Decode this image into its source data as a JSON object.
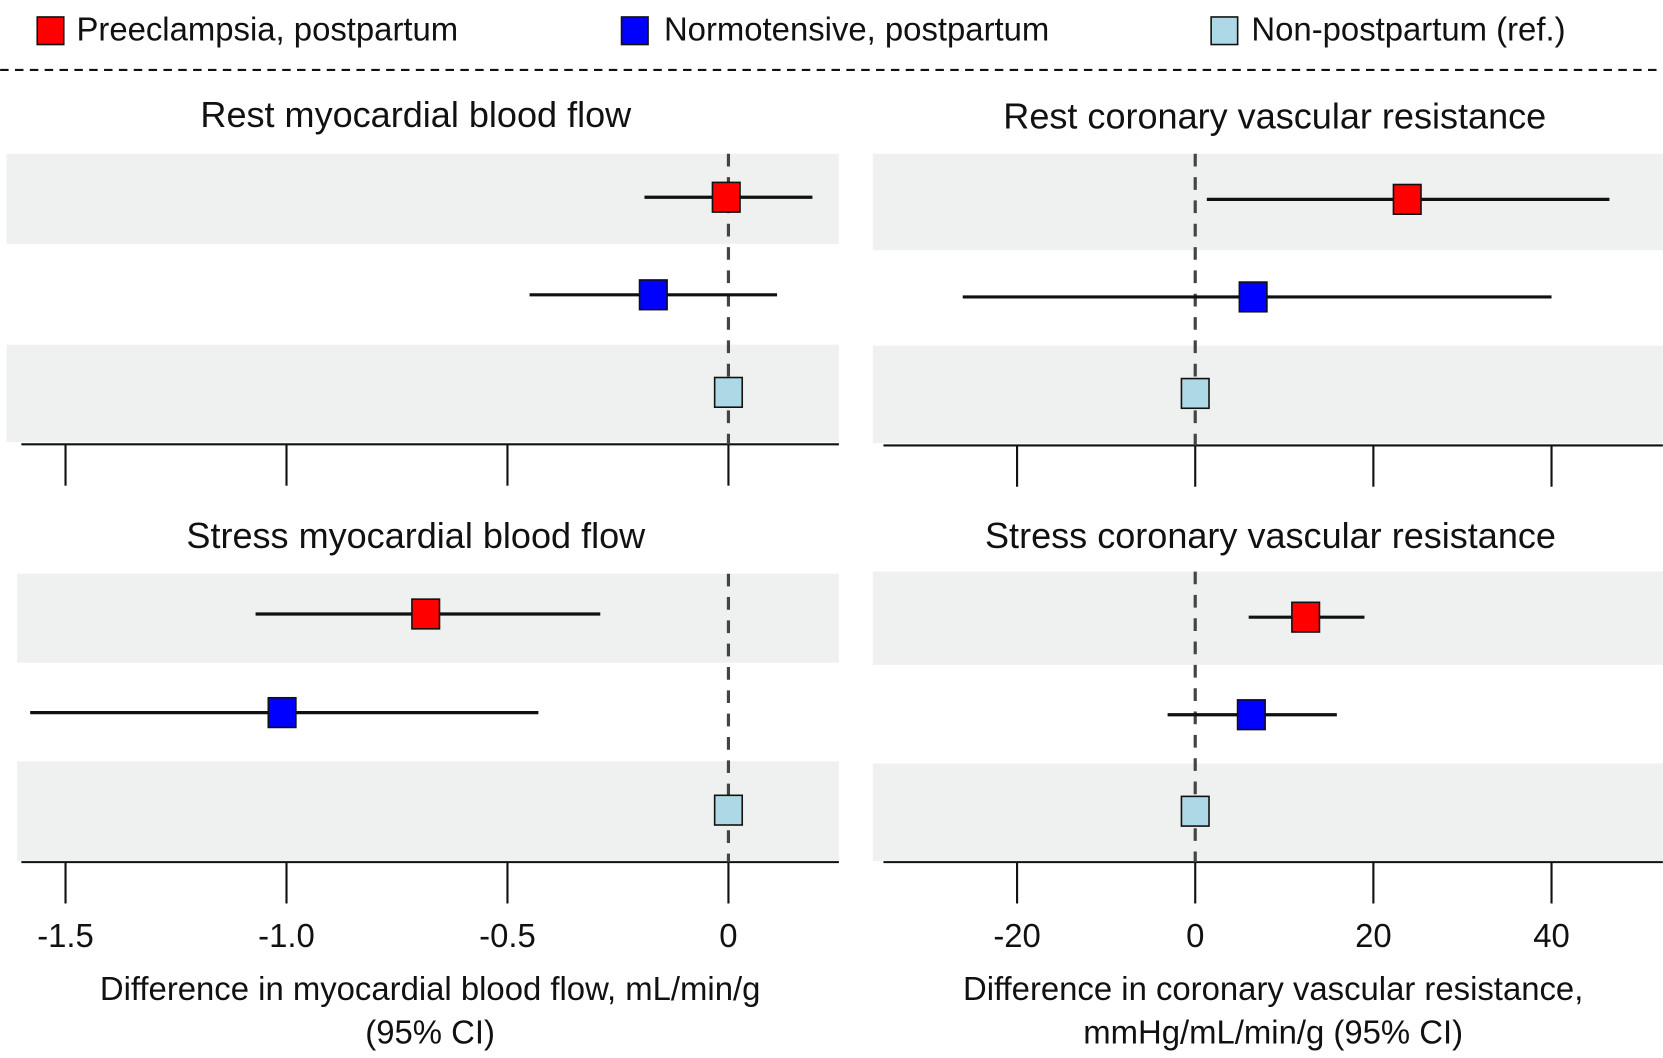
{
  "chart_data": [
    {
      "type": "forest",
      "title": "Rest myocardial blood flow",
      "xlim": [
        -1.6,
        0.25
      ],
      "xticks": [
        -1.5,
        -1,
        -0.5,
        0
      ],
      "tick_labels": false,
      "series": [
        {
          "name": "Preeclampsia, postpartum",
          "color": "#ff0000",
          "values": [
            -0.005
          ],
          "ci_low": [
            -0.19
          ],
          "ci_high": [
            0.19
          ]
        },
        {
          "name": "Normotensive, postpartum",
          "color": "#0000ff",
          "values": [
            -0.17
          ],
          "ci_low": [
            -0.45
          ],
          "ci_high": [
            0.11
          ]
        },
        {
          "name": "Non-postpartum (ref.)",
          "color": "#add8e6",
          "values": [
            0
          ]
        }
      ]
    },
    {
      "type": "forest",
      "title": "Rest coronary vascular resistance",
      "xlim": [
        -35,
        52.5
      ],
      "xticks": [
        -20,
        0,
        20,
        40
      ],
      "tick_labels": false,
      "series": [
        {
          "name": "Preeclampsia, postpartum",
          "color": "#ff0000",
          "values": [
            23.8
          ],
          "ci_low": [
            1.3
          ],
          "ci_high": [
            46.5
          ]
        },
        {
          "name": "Normotensive, postpartum",
          "color": "#0000ff",
          "values": [
            6.5
          ],
          "ci_low": [
            -26.1
          ],
          "ci_high": [
            40
          ]
        },
        {
          "name": "Non-postpartum (ref.)",
          "color": "#add8e6",
          "values": [
            0
          ]
        }
      ]
    },
    {
      "type": "forest",
      "title": "Stress myocardial blood flow",
      "xlim": [
        -1.6,
        0.25
      ],
      "xticks": [
        -1.5,
        {
          "value": -1,
          "label": "-1.0"
        },
        -0.5,
        0
      ],
      "tick_labels": true,
      "xlabel": [
        "Difference in myocardial blood flow, mL/min/g",
        "(95% CI)"
      ],
      "series": [
        {
          "name": "Preeclampsia, postpartum",
          "color": "#ff0000",
          "values": [
            -0.685
          ],
          "ci_low": [
            -1.07
          ],
          "ci_high": [
            -0.29
          ]
        },
        {
          "name": "Normotensive, postpartum",
          "color": "#0000ff",
          "values": [
            -1.01
          ],
          "ci_low": [
            -1.58
          ],
          "ci_high": [
            -0.43
          ]
        },
        {
          "name": "Non-postpartum (ref.)",
          "color": "#add8e6",
          "values": [
            0
          ]
        }
      ]
    },
    {
      "type": "forest",
      "title": "Stress coronary vascular resistance",
      "xlim": [
        -35,
        52.5
      ],
      "xticks": [
        -20,
        0,
        20,
        40
      ],
      "tick_labels": true,
      "xlabel": [
        "Difference in coronary vascular resistance,",
        "mmHg/mL/min/g (95% CI)"
      ],
      "series": [
        {
          "name": "Preeclampsia, postpartum",
          "color": "#ff0000",
          "values": [
            12.4
          ],
          "ci_low": [
            6
          ],
          "ci_high": [
            19
          ]
        },
        {
          "name": "Normotensive, postpartum",
          "color": "#0000ff",
          "values": [
            6.3
          ],
          "ci_low": [
            -3.1
          ],
          "ci_high": [
            15.9
          ]
        },
        {
          "name": "Non-postpartum (ref.)",
          "color": "#add8e6",
          "values": [
            0
          ]
        }
      ]
    }
  ]
}
